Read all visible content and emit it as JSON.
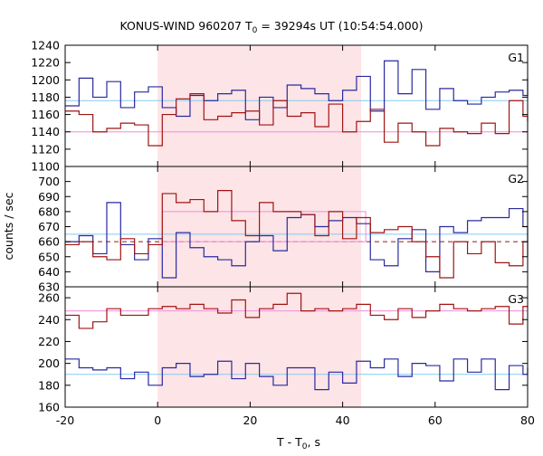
{
  "title": {
    "main": "KONUS-WIND 960207 T",
    "sub": "0",
    "rest": " = 39294s UT (10:54:54.000)"
  },
  "ylabel": "counts / sec",
  "xlabel": {
    "main": "T - T",
    "sub": "0",
    "rest": ", s"
  },
  "colors": {
    "red": "#a01414",
    "blue": "#2a2aa0",
    "lightblue": "#87c8f0",
    "pink": "#f08cdc",
    "shade": "#fde4e6",
    "frame": "#000000"
  },
  "chart_data": {
    "type": "line",
    "x_range": [
      -20,
      80
    ],
    "x_ticks": [
      -20,
      0,
      20,
      40,
      60,
      80
    ],
    "x_tick_labels": [
      "-20",
      "0",
      "20",
      "40",
      "60",
      "80"
    ],
    "shaded_interval": [
      0,
      44
    ],
    "bin_edges": [
      -20,
      -17,
      -14,
      -11,
      -8,
      -5,
      -2,
      1,
      4,
      7,
      10,
      13,
      16,
      19,
      22,
      25,
      28,
      31,
      34,
      37,
      40,
      43,
      46,
      49,
      52,
      55,
      58,
      61,
      64,
      67,
      70,
      73,
      76,
      79,
      80
    ],
    "panels": [
      {
        "label": "G1",
        "y_range": [
          1100,
          1240
        ],
        "y_ticks": [
          1100,
          1120,
          1140,
          1160,
          1180,
          1200,
          1220,
          1240
        ],
        "y_tick_labels": [
          "1100",
          "1120",
          "1140",
          "1160",
          "1180",
          "1200",
          "1220",
          "1240"
        ],
        "series": [
          {
            "color": "blue",
            "values": [
              1170,
              1202,
              1180,
              1198,
              1168,
              1186,
              1192,
              1168,
              1158,
              1182,
              1176,
              1184,
              1188,
              1154,
              1180,
              1168,
              1194,
              1190,
              1184,
              1176,
              1188,
              1204,
              1164,
              1222,
              1184,
              1212,
              1166,
              1190,
              1176,
              1172,
              1180,
              1186,
              1188,
              1182,
              1202
            ]
          },
          {
            "color": "red",
            "values": [
              1164,
              1160,
              1140,
              1144,
              1150,
              1148,
              1124,
              1160,
              1178,
              1184,
              1154,
              1158,
              1162,
              1164,
              1148,
              1176,
              1158,
              1162,
              1146,
              1172,
              1140,
              1152,
              1166,
              1128,
              1150,
              1140,
              1124,
              1144,
              1140,
              1138,
              1150,
              1138,
              1176,
              1158,
              1152
            ]
          }
        ],
        "mean_lines": [
          {
            "value": 1176,
            "color": "lightblue"
          },
          {
            "value": 1140,
            "color": "pink"
          }
        ]
      },
      {
        "label": "G2",
        "y_range": [
          630,
          710
        ],
        "y_ticks": [
          630,
          640,
          650,
          660,
          670,
          680,
          690,
          700
        ],
        "y_tick_labels": [
          "630",
          "640",
          "650",
          "660",
          "670",
          "680",
          "690",
          "700"
        ],
        "series": [
          {
            "color": "blue",
            "values": [
              660,
              664,
              652,
              686,
              658,
              648,
              662,
              636,
              666,
              656,
              650,
              648,
              644,
              660,
              664,
              654,
              676,
              678,
              670,
              674,
              676,
              672,
              648,
              644,
              662,
              668,
              640,
              670,
              666,
              674,
              676,
              676,
              682,
              670,
              660
            ]
          },
          {
            "color": "red",
            "values": [
              658,
              660,
              650,
              648,
              662,
              652,
              658,
              692,
              686,
              688,
              680,
              694,
              674,
              664,
              686,
              680,
              680,
              678,
              664,
              680,
              662,
              676,
              666,
              668,
              670,
              660,
              650,
              636,
              660,
              652,
              660,
              646,
              644,
              660,
              650
            ]
          }
        ],
        "mean_lines": [
          {
            "value": 665,
            "color": "lightblue"
          },
          {
            "value": 660,
            "color": "red",
            "dashed": true
          }
        ],
        "signal_box": {
          "x_start": 1,
          "x_end": 45,
          "value": 680
        }
      },
      {
        "label": "G3",
        "y_range": [
          160,
          270
        ],
        "y_ticks": [
          160,
          180,
          200,
          220,
          240,
          260
        ],
        "y_tick_labels": [
          "160",
          "180",
          "200",
          "220",
          "240",
          "260"
        ],
        "series": [
          {
            "color": "red",
            "values": [
              244,
              232,
              238,
              250,
              244,
              244,
              250,
              252,
              250,
              254,
              250,
              246,
              258,
              242,
              250,
              254,
              264,
              248,
              250,
              248,
              250,
              254,
              244,
              240,
              250,
              242,
              248,
              254,
              250,
              248,
              250,
              252,
              236,
              252,
              252
            ]
          },
          {
            "color": "blue",
            "values": [
              204,
              196,
              194,
              196,
              186,
              192,
              180,
              196,
              200,
              188,
              190,
              202,
              186,
              200,
              188,
              180,
              196,
              196,
              176,
              192,
              182,
              202,
              196,
              204,
              188,
              200,
              198,
              184,
              204,
              192,
              204,
              176,
              198,
              190,
              196
            ]
          }
        ],
        "mean_lines": [
          {
            "value": 190,
            "color": "lightblue"
          },
          {
            "value": 248,
            "color": "pink"
          }
        ]
      }
    ]
  }
}
